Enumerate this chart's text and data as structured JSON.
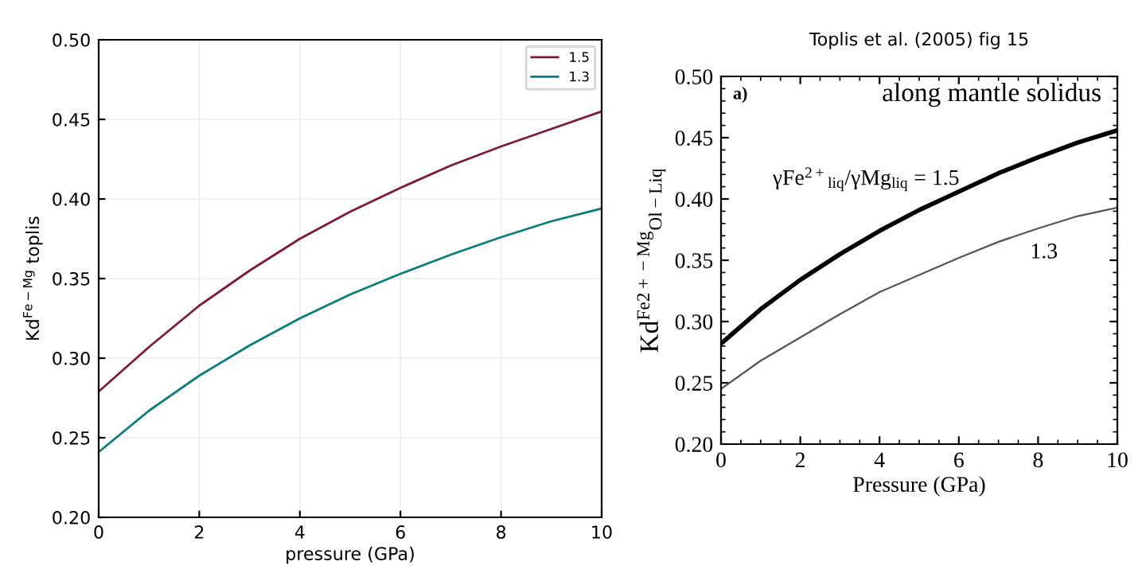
{
  "chart_data": [
    {
      "type": "line",
      "xlabel": "pressure (GPa)",
      "ylabel": "Kd$^{Fe−Mg}$ toplis",
      "x": [
        0,
        1,
        2,
        3,
        4,
        5,
        6,
        7,
        8,
        9,
        10
      ],
      "series": [
        {
          "name": "1.5",
          "color": "#7b1a3c",
          "values": [
            0.279,
            0.307,
            0.333,
            0.355,
            0.375,
            0.392,
            0.407,
            0.421,
            0.433,
            0.444,
            0.455
          ]
        },
        {
          "name": "1.3",
          "color": "#0b7b7b",
          "values": [
            0.241,
            0.267,
            0.289,
            0.308,
            0.325,
            0.34,
            0.353,
            0.365,
            0.376,
            0.386,
            0.394
          ]
        }
      ],
      "xlim": [
        0,
        10
      ],
      "xticks": [
        0,
        2,
        4,
        6,
        8,
        10
      ],
      "ylim": [
        0.2,
        0.5
      ],
      "yticks": [
        {
          "value": 0.2,
          "label": "0.20"
        },
        {
          "value": 0.25,
          "label": "0.25"
        },
        {
          "value": 0.3,
          "label": "0.30"
        },
        {
          "value": 0.35,
          "label": "0.35"
        },
        {
          "value": 0.4,
          "label": "0.40"
        },
        {
          "value": 0.45,
          "label": "0.45"
        },
        {
          "value": 0.5,
          "label": "0.50"
        }
      ],
      "grid": true,
      "legend": "top right",
      "marker": "none",
      "line_style": "solid"
    },
    {
      "type": "line",
      "title": "Toplis et al. (2005) fig 15",
      "xlabel": "Pressure (GPa)",
      "ylabel": "Kd$^{Fe2+−Mg}$$_{Ol−Liq}$",
      "x": [
        0,
        1,
        2,
        3,
        4,
        5,
        6,
        7,
        8,
        9,
        10
      ],
      "series": [
        {
          "color": "#000000",
          "values": [
            0.282,
            0.31,
            0.334,
            0.355,
            0.374,
            0.391,
            0.406,
            0.421,
            0.434,
            0.446,
            0.456
          ]
        },
        {
          "color": "#555555",
          "values": [
            0.245,
            0.268,
            0.287,
            0.306,
            0.324,
            0.338,
            0.352,
            0.365,
            0.376,
            0.386,
            0.393
          ]
        }
      ],
      "xlim": [
        0,
        10
      ],
      "xticks": [
        0,
        2,
        4,
        6,
        8,
        10
      ],
      "ylim": [
        0.2,
        0.5
      ],
      "yticks": [
        {
          "value": 0.2,
          "label": "0.20"
        },
        {
          "value": 0.25,
          "label": "0.25"
        },
        {
          "value": 0.3,
          "label": "0.30"
        },
        {
          "value": 0.35,
          "label": "0.35"
        },
        {
          "value": 0.4,
          "label": "0.40"
        },
        {
          "value": 0.45,
          "label": "0.45"
        },
        {
          "value": 0.5,
          "label": "0.50"
        }
      ],
      "grid": false,
      "marker": "none",
      "line_style": "solid",
      "annotations": [
        "a)",
        "along mantle solidus",
        "γFe$^{2+}$$_{liq}$/γMg$_{liq}$ = 1.5",
        "1.3"
      ]
    }
  ]
}
